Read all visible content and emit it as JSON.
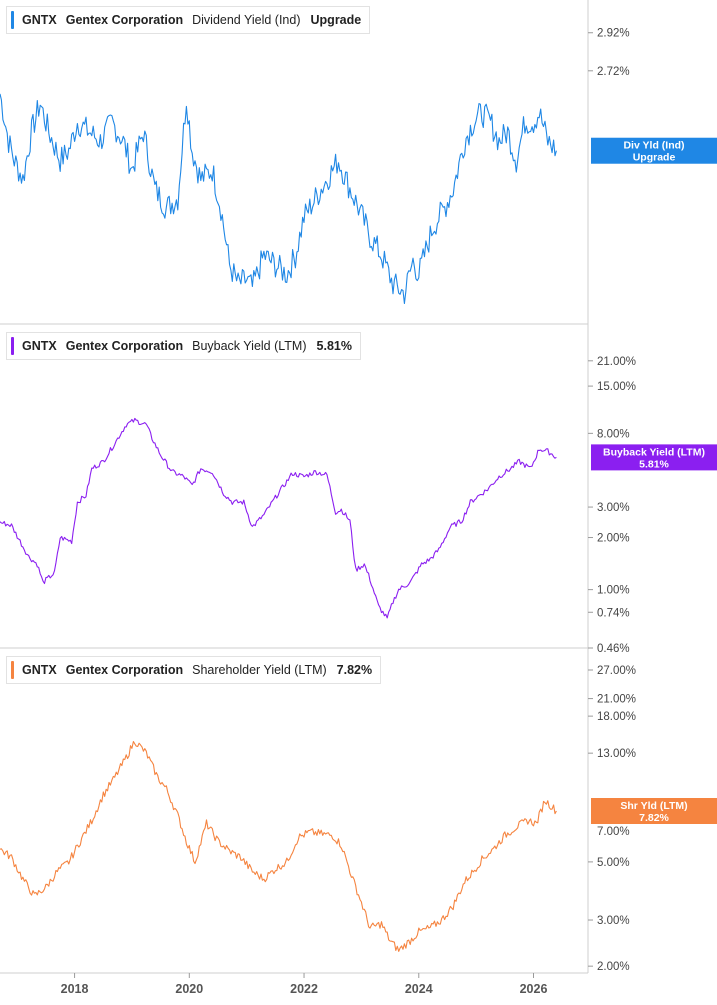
{
  "chart_data": [
    {
      "type": "line",
      "ticker": "GNTX",
      "company": "Gentex Corporation",
      "metric": "Dividend Yield (Ind)",
      "legend_value": "Upgrade",
      "badge_line1": "Div Yld (Ind)",
      "badge_line2": "Upgrade",
      "badge_partial": "2.0",
      "color": "#1f87e5",
      "scale": "linear",
      "ylim": [
        1.4,
        3.05
      ],
      "y_ticks": [
        {
          "value": 2.92,
          "label": "2.92%"
        },
        {
          "value": 2.72,
          "label": "2.72%"
        }
      ],
      "series": [
        {
          "x": [
            2016.7,
            2016.85,
            2016.95,
            2017.1,
            2017.25,
            2017.4,
            2017.55,
            2017.75,
            2017.9,
            2018.05,
            2018.25,
            2018.45,
            2018.65,
            2018.85,
            2019.0,
            2019.2,
            2019.4,
            2019.6,
            2019.8,
            2019.95,
            2020.05,
            2020.2,
            2020.4,
            2020.55,
            2020.7,
            2020.85,
            2021.0,
            2021.1,
            2021.3,
            2021.5,
            2021.7,
            2021.85,
            2022.0,
            2022.2,
            2022.4,
            2022.6,
            2022.8,
            2022.95,
            2023.15,
            2023.35,
            2023.55,
            2023.75,
            2023.9,
            2024.0,
            2024.1,
            2024.25,
            2024.45,
            2024.6,
            2024.8,
            2024.95,
            2025.1,
            2025.25,
            2025.4,
            2025.55,
            2025.7,
            2025.85,
            2026.0,
            2026.1,
            2026.25,
            2026.4
          ],
          "y": [
            2.6,
            2.35,
            2.25,
            2.15,
            2.4,
            2.55,
            2.4,
            2.25,
            2.3,
            2.45,
            2.4,
            2.35,
            2.45,
            2.35,
            2.2,
            2.4,
            2.1,
            2.0,
            2.05,
            2.58,
            2.3,
            2.15,
            2.2,
            2.0,
            1.7,
            1.6,
            1.62,
            1.58,
            1.75,
            1.7,
            1.65,
            1.75,
            1.95,
            2.05,
            2.15,
            2.25,
            2.1,
            2.0,
            1.85,
            1.75,
            1.6,
            1.55,
            1.72,
            1.65,
            1.75,
            1.9,
            2.0,
            2.1,
            2.35,
            2.45,
            2.5,
            2.45,
            2.35,
            2.4,
            2.25,
            2.45,
            2.45,
            2.5,
            2.35,
            2.3
          ]
        }
      ]
    },
    {
      "type": "line",
      "ticker": "GNTX",
      "company": "Gentex Corporation",
      "metric": "Buyback Yield (LTM)",
      "legend_value": "5.81%",
      "badge_line1": "Buyback Yield (LTM)",
      "badge_line2": "5.81%",
      "color": "#8b1ff0",
      "scale": "log",
      "ylim": [
        0.46,
        30
      ],
      "y_ticks": [
        {
          "value": 21,
          "label": "21.00%"
        },
        {
          "value": 15,
          "label": "15.00%"
        },
        {
          "value": 8,
          "label": "8.00%"
        },
        {
          "value": 3,
          "label": "3.00%"
        },
        {
          "value": 2,
          "label": "2.00%"
        },
        {
          "value": 1,
          "label": "1.00%"
        },
        {
          "value": 0.74,
          "label": "0.74%"
        },
        {
          "value": 0.46,
          "label": "0.46%"
        }
      ],
      "series": [
        {
          "x": [
            2016.7,
            2016.9,
            2017.05,
            2017.2,
            2017.35,
            2017.45,
            2017.65,
            2017.75,
            2017.95,
            2018.05,
            2018.2,
            2018.3,
            2018.5,
            2018.7,
            2018.9,
            2019.05,
            2019.25,
            2019.35,
            2019.5,
            2019.7,
            2019.9,
            2020.05,
            2020.2,
            2020.4,
            2020.6,
            2020.75,
            2020.95,
            2021.1,
            2021.3,
            2021.55,
            2021.65,
            2021.8,
            2022.0,
            2022.2,
            2022.4,
            2022.55,
            2022.65,
            2022.8,
            2022.9,
            2023.05,
            2023.15,
            2023.3,
            2023.45,
            2023.55,
            2023.65,
            2023.85,
            2024.05,
            2024.2,
            2024.35,
            2024.55,
            2024.75,
            2024.9,
            2025.05,
            2025.2,
            2025.4,
            2025.6,
            2025.75,
            2025.95,
            2026.1,
            2026.25,
            2026.4
          ],
          "y": [
            2.45,
            2.35,
            1.9,
            1.55,
            1.4,
            1.1,
            1.25,
            2.0,
            1.9,
            3.2,
            3.5,
            5.0,
            5.5,
            7.0,
            9.0,
            9.5,
            9.0,
            7.5,
            6.0,
            4.8,
            4.5,
            4.0,
            5.0,
            4.8,
            3.6,
            3.2,
            3.2,
            2.3,
            2.7,
            3.6,
            4.0,
            4.7,
            4.5,
            4.8,
            4.6,
            2.8,
            2.9,
            2.5,
            1.3,
            1.4,
            1.15,
            0.8,
            0.68,
            0.85,
            1.0,
            1.1,
            1.4,
            1.5,
            1.7,
            2.3,
            2.5,
            3.2,
            3.5,
            3.8,
            4.5,
            5.0,
            5.5,
            5.0,
            6.5,
            6.3,
            5.81
          ]
        }
      ]
    },
    {
      "type": "line",
      "ticker": "GNTX",
      "company": "Gentex Corporation",
      "metric": "Shareholder Yield (LTM)",
      "legend_value": "7.82%",
      "badge_line1": "Shr Yld (LTM)",
      "badge_line2": "7.82%",
      "badge_partial": "8.0",
      "badge_below": "7.00%",
      "color": "#f58440",
      "scale": "log",
      "ylim": [
        1.9,
        30
      ],
      "y_ticks": [
        {
          "value": 27,
          "label": "27.00%"
        },
        {
          "value": 21,
          "label": "21.00%"
        },
        {
          "value": 18,
          "label": "18.00%"
        },
        {
          "value": 13,
          "label": "13.00%"
        },
        {
          "value": 5,
          "label": "5.00%"
        },
        {
          "value": 3,
          "label": "3.00%"
        },
        {
          "value": 2,
          "label": "2.00%"
        }
      ],
      "series": [
        {
          "x": [
            2016.7,
            2016.9,
            2017.1,
            2017.3,
            2017.5,
            2017.7,
            2017.9,
            2018.1,
            2018.3,
            2018.5,
            2018.7,
            2018.9,
            2019.05,
            2019.25,
            2019.45,
            2019.6,
            2019.8,
            2019.95,
            2020.1,
            2020.3,
            2020.5,
            2020.7,
            2020.9,
            2021.1,
            2021.3,
            2021.5,
            2021.7,
            2021.9,
            2022.1,
            2022.3,
            2022.5,
            2022.65,
            2022.85,
            2023.0,
            2023.15,
            2023.35,
            2023.5,
            2023.65,
            2023.85,
            2024.0,
            2024.2,
            2024.4,
            2024.6,
            2024.8,
            2024.95,
            2025.1,
            2025.3,
            2025.5,
            2025.7,
            2025.9,
            2026.05,
            2026.2,
            2026.4
          ],
          "y": [
            5.6,
            5.2,
            4.3,
            3.7,
            4.0,
            4.6,
            5.0,
            6.0,
            7.2,
            9.0,
            10.5,
            12.5,
            14.5,
            13.0,
            10.5,
            9.5,
            7.5,
            6.0,
            5.0,
            7.0,
            6.0,
            5.5,
            5.2,
            4.6,
            4.3,
            4.7,
            5.0,
            6.2,
            6.5,
            6.4,
            6.3,
            5.8,
            4.3,
            3.5,
            2.8,
            2.9,
            2.5,
            2.3,
            2.5,
            2.7,
            2.8,
            3.0,
            3.4,
            4.2,
            4.6,
            5.1,
            5.6,
            6.3,
            6.8,
            7.2,
            7.0,
            8.6,
            7.82
          ]
        }
      ]
    }
  ],
  "x_axis": {
    "ticks": [
      {
        "value": 2018,
        "label": "2018"
      },
      {
        "value": 2020,
        "label": "2020"
      },
      {
        "value": 2022,
        "label": "2022"
      },
      {
        "value": 2024,
        "label": "2024"
      },
      {
        "value": 2026,
        "label": "2026"
      }
    ],
    "xlim": [
      2016.7,
      2026.95
    ]
  }
}
